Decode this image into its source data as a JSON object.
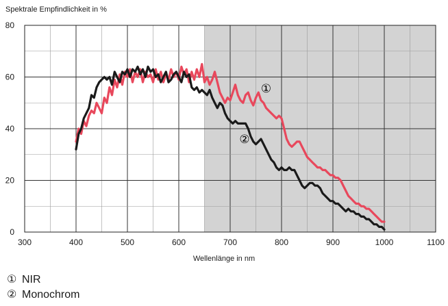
{
  "chart_data": {
    "type": "line",
    "ylabel": "Spektrale Empfindlichkeit in %",
    "xlabel": "Wellenlänge in nm",
    "xlim": [
      300,
      1100
    ],
    "ylim": [
      0,
      80
    ],
    "x_ticks": [
      "300",
      "400",
      "500",
      "600",
      "700",
      "800",
      "900",
      "1000",
      "1100"
    ],
    "y_ticks": [
      "0",
      "20",
      "40",
      "60",
      "80"
    ],
    "grid": true,
    "shaded_region": [
      650,
      1100
    ],
    "series": [
      {
        "name": "NIR",
        "marker": "①",
        "color": "#e8485c",
        "x": [
          400,
          405,
          410,
          415,
          420,
          425,
          430,
          435,
          440,
          445,
          450,
          455,
          460,
          465,
          470,
          475,
          480,
          485,
          490,
          495,
          500,
          505,
          510,
          515,
          520,
          525,
          530,
          535,
          540,
          545,
          550,
          555,
          560,
          565,
          570,
          575,
          580,
          585,
          590,
          595,
          600,
          605,
          610,
          615,
          620,
          625,
          630,
          635,
          640,
          645,
          650,
          655,
          660,
          665,
          670,
          675,
          680,
          685,
          690,
          695,
          700,
          705,
          710,
          715,
          720,
          725,
          730,
          735,
          740,
          745,
          750,
          755,
          760,
          765,
          770,
          775,
          780,
          785,
          790,
          795,
          800,
          805,
          810,
          815,
          820,
          825,
          830,
          835,
          840,
          845,
          850,
          855,
          860,
          865,
          870,
          875,
          880,
          885,
          890,
          895,
          900,
          905,
          910,
          915,
          920,
          925,
          930,
          935,
          940,
          945,
          950,
          955,
          960,
          965,
          970,
          975,
          980,
          985,
          990,
          995,
          1000
        ],
        "y": [
          35,
          40,
          38,
          43,
          41,
          45,
          47,
          46,
          50,
          48,
          46,
          52,
          50,
          56,
          53,
          59,
          56,
          61,
          57,
          62,
          60,
          63,
          58,
          62,
          60,
          63,
          58,
          62,
          60,
          61,
          58,
          63,
          59,
          62,
          58,
          61,
          59,
          63,
          60,
          62,
          59,
          64,
          61,
          63,
          58,
          62,
          59,
          63,
          60,
          65,
          58,
          60,
          57,
          59,
          62,
          58,
          54,
          52,
          50,
          52,
          51,
          54,
          57,
          53,
          51,
          50,
          53,
          54,
          51,
          49,
          52,
          54,
          51,
          50,
          48,
          47,
          46,
          45,
          44,
          45,
          44,
          40,
          36,
          34,
          33,
          34,
          35,
          35,
          33,
          31,
          29,
          28,
          27,
          26,
          25,
          25,
          24,
          24,
          23,
          22,
          22,
          21,
          21,
          20,
          18,
          16,
          14,
          13,
          12,
          11,
          11,
          10,
          10,
          9,
          9,
          8,
          7,
          6,
          5,
          4,
          4
        ]
      },
      {
        "name": "Monochrom",
        "marker": "②",
        "color": "#1a1a1a",
        "x": [
          400,
          405,
          410,
          415,
          420,
          425,
          430,
          435,
          440,
          445,
          450,
          455,
          460,
          465,
          470,
          475,
          480,
          485,
          490,
          495,
          500,
          505,
          510,
          515,
          520,
          525,
          530,
          535,
          540,
          545,
          550,
          555,
          560,
          565,
          570,
          575,
          580,
          585,
          590,
          595,
          600,
          605,
          610,
          615,
          620,
          625,
          630,
          635,
          640,
          645,
          650,
          655,
          660,
          665,
          670,
          675,
          680,
          685,
          690,
          695,
          700,
          705,
          710,
          715,
          720,
          725,
          730,
          735,
          740,
          745,
          750,
          755,
          760,
          765,
          770,
          775,
          780,
          785,
          790,
          795,
          800,
          805,
          810,
          815,
          820,
          825,
          830,
          835,
          840,
          845,
          850,
          855,
          860,
          865,
          870,
          875,
          880,
          885,
          890,
          895,
          900,
          905,
          910,
          915,
          920,
          925,
          930,
          935,
          940,
          945,
          950,
          955,
          960,
          965,
          970,
          975,
          980,
          985,
          990,
          995,
          1000
        ],
        "y": [
          32,
          38,
          40,
          44,
          46,
          48,
          53,
          52,
          56,
          58,
          59,
          60,
          59,
          60,
          57,
          62,
          60,
          58,
          62,
          61,
          63,
          60,
          63,
          62,
          64,
          61,
          63,
          60,
          64,
          62,
          63,
          60,
          61,
          58,
          60,
          62,
          58,
          59,
          61,
          62,
          60,
          58,
          62,
          60,
          61,
          56,
          55,
          56,
          54,
          55,
          54,
          53,
          55,
          52,
          50,
          48,
          50,
          49,
          46,
          44,
          43,
          42,
          43,
          42,
          42,
          42,
          42,
          40,
          37,
          35,
          34,
          35,
          36,
          34,
          32,
          30,
          28,
          27,
          25,
          24,
          25,
          24,
          24,
          25,
          24,
          24,
          22,
          20,
          18,
          17,
          18,
          19,
          19,
          18,
          18,
          17,
          15,
          14,
          13,
          12,
          12,
          11,
          11,
          10,
          9,
          8,
          9,
          8,
          8,
          7,
          7,
          6,
          6,
          5,
          5,
          4,
          3,
          3,
          2,
          2,
          1
        ]
      }
    ]
  },
  "legend": [
    {
      "marker": "①",
      "label": "NIR"
    },
    {
      "marker": "②",
      "label": "Monochrom"
    }
  ]
}
